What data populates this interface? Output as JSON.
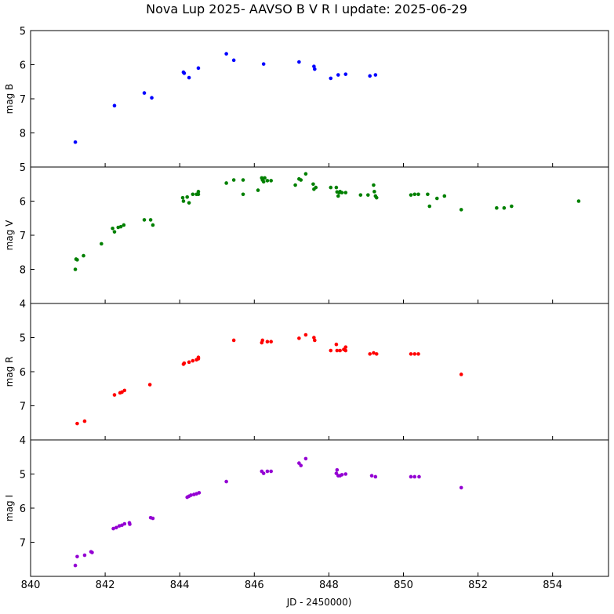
{
  "chart_data": {
    "type": "scatter",
    "title": "Nova Lup 2025- AAVSO B V R I      update: 2025-06-29",
    "xlabel": "JD - 2450000)",
    "xlim": [
      840,
      855.5
    ],
    "xticks": [
      840,
      842,
      844,
      846,
      848,
      850,
      852,
      854
    ],
    "panels": [
      {
        "name": "B",
        "ylabel": "mag B",
        "ylim": [
          9,
          5
        ],
        "yticks": [
          5,
          6,
          7,
          8
        ],
        "color": "#0000ff",
        "x": [
          841.2,
          842.25,
          843.05,
          843.25,
          844.1,
          844.12,
          844.25,
          844.5,
          845.25,
          845.45,
          846.25,
          847.2,
          847.6,
          847.62,
          848.05,
          848.25,
          848.45,
          849.1,
          849.25
        ],
        "y": [
          8.27,
          7.2,
          6.83,
          6.97,
          6.22,
          6.25,
          6.38,
          6.1,
          5.68,
          5.87,
          5.98,
          5.92,
          6.05,
          6.13,
          6.4,
          6.3,
          6.28,
          6.33,
          6.3
        ]
      },
      {
        "name": "V",
        "ylabel": "mag V",
        "ylim": [
          9,
          5
        ],
        "yticks": [
          5,
          6,
          7,
          8
        ],
        "color": "#008000",
        "x": [
          841.2,
          841.22,
          841.25,
          841.42,
          841.9,
          842.2,
          842.25,
          842.35,
          842.42,
          842.5,
          843.05,
          843.22,
          843.28,
          844.08,
          844.1,
          844.2,
          844.25,
          844.35,
          844.45,
          844.5,
          844.5,
          845.25,
          845.45,
          845.7,
          845.7,
          846.1,
          846.2,
          846.22,
          846.25,
          846.28,
          846.35,
          846.45,
          847.1,
          847.2,
          847.25,
          847.38,
          847.58,
          847.6,
          847.65,
          848.05,
          848.2,
          848.22,
          848.25,
          848.28,
          848.3,
          848.35,
          848.45,
          848.85,
          849.05,
          849.2,
          849.22,
          849.25,
          849.28,
          850.2,
          850.3,
          850.4,
          850.65,
          850.7,
          850.9,
          851.1,
          851.55,
          852.5,
          852.7,
          852.9,
          854.7
        ],
        "y": [
          8.0,
          7.7,
          7.72,
          7.6,
          7.25,
          6.8,
          6.9,
          6.77,
          6.75,
          6.7,
          6.55,
          6.55,
          6.7,
          5.9,
          6.0,
          5.88,
          6.05,
          5.8,
          5.8,
          5.72,
          5.8,
          5.47,
          5.38,
          5.38,
          5.8,
          5.68,
          5.32,
          5.38,
          5.43,
          5.32,
          5.4,
          5.4,
          5.53,
          5.35,
          5.38,
          5.2,
          5.5,
          5.65,
          5.6,
          5.6,
          5.6,
          5.73,
          5.85,
          5.75,
          5.72,
          5.75,
          5.75,
          5.82,
          5.82,
          5.53,
          5.72,
          5.85,
          5.9,
          5.82,
          5.8,
          5.8,
          5.8,
          6.15,
          5.92,
          5.85,
          6.25,
          6.2,
          6.2,
          6.15,
          6.0
        ]
      },
      {
        "name": "R",
        "ylabel": "mag R",
        "ylim": [
          8,
          4
        ],
        "yticks": [
          4,
          5,
          6,
          7
        ],
        "color": "#ff0000",
        "x": [
          841.25,
          841.45,
          842.25,
          842.4,
          842.45,
          842.52,
          843.2,
          844.1,
          844.12,
          844.25,
          844.35,
          844.45,
          844.5,
          844.5,
          845.45,
          846.2,
          846.22,
          846.35,
          846.45,
          847.2,
          847.38,
          847.6,
          847.62,
          848.05,
          848.2,
          848.22,
          848.3,
          848.4,
          848.45,
          848.45,
          849.1,
          849.2,
          849.28,
          850.2,
          850.3,
          850.4,
          851.55
        ],
        "y": [
          7.52,
          7.45,
          6.68,
          6.62,
          6.6,
          6.55,
          6.38,
          5.78,
          5.75,
          5.72,
          5.68,
          5.65,
          5.58,
          5.62,
          5.08,
          5.15,
          5.08,
          5.12,
          5.12,
          5.02,
          4.92,
          5.0,
          5.08,
          5.38,
          5.2,
          5.38,
          5.38,
          5.35,
          5.38,
          5.28,
          5.48,
          5.45,
          5.48,
          5.48,
          5.48,
          5.48,
          6.08
        ]
      },
      {
        "name": "I",
        "ylabel": "mag I",
        "ylim": [
          8,
          4
        ],
        "yticks": [
          4,
          5,
          6,
          7
        ],
        "color": "#9400d3",
        "x": [
          841.2,
          841.25,
          841.45,
          841.62,
          841.65,
          842.22,
          842.3,
          842.38,
          842.45,
          842.52,
          842.65,
          842.66,
          843.22,
          843.28,
          844.2,
          844.25,
          844.3,
          844.38,
          844.45,
          844.52,
          845.25,
          846.2,
          846.25,
          846.35,
          846.45,
          847.2,
          847.25,
          847.38,
          848.2,
          848.22,
          848.25,
          848.3,
          848.35,
          848.45,
          849.15,
          849.25,
          850.2,
          850.3,
          850.42,
          851.55
        ],
        "y": [
          7.68,
          7.42,
          7.38,
          7.28,
          7.3,
          6.6,
          6.57,
          6.52,
          6.5,
          6.46,
          6.43,
          6.47,
          6.28,
          6.3,
          5.68,
          5.65,
          5.62,
          5.6,
          5.58,
          5.55,
          5.22,
          4.92,
          4.98,
          4.92,
          4.92,
          4.68,
          4.75,
          4.55,
          4.98,
          4.88,
          5.05,
          5.05,
          5.02,
          5.0,
          5.05,
          5.08,
          5.08,
          5.08,
          5.08,
          5.4
        ]
      }
    ]
  }
}
